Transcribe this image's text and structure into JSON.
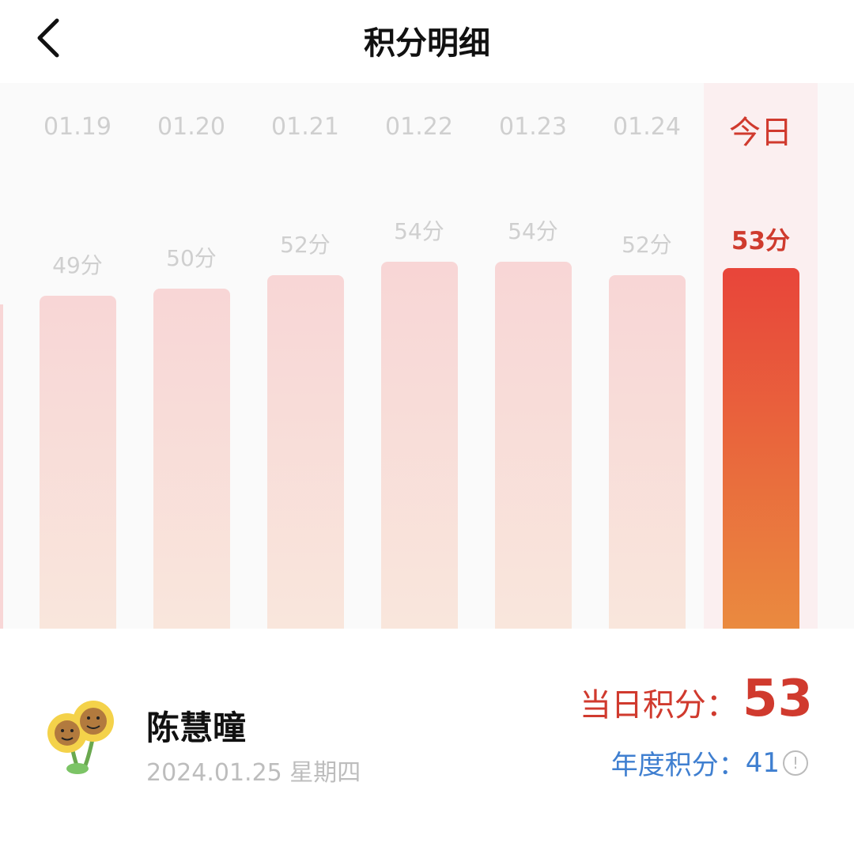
{
  "header": {
    "title": "积分明细"
  },
  "chart_data": {
    "type": "bar",
    "categories": [
      "01.19",
      "01.20",
      "01.21",
      "01.22",
      "01.23",
      "01.24",
      "今日"
    ],
    "values": [
      49,
      50,
      52,
      54,
      54,
      52,
      53
    ],
    "value_labels": [
      "49分",
      "50分",
      "52分",
      "54分",
      "54分",
      "52分",
      "53分"
    ],
    "highlight_index": 6,
    "colors": {
      "normal": "#f8d6d6",
      "highlight": "#e8453a"
    }
  },
  "user": {
    "name": "陈慧曈",
    "date": "2024.01.25 星期四"
  },
  "scores": {
    "daily_label": "当日积分：",
    "daily_value": "53",
    "annual_label": "年度积分：",
    "annual_value": "41"
  }
}
